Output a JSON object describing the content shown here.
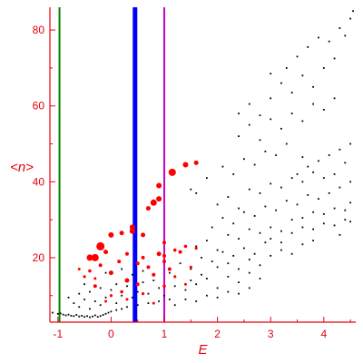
{
  "chart_data": {
    "type": "scatter",
    "title": "",
    "xlabel": "E",
    "ylabel": "<n>",
    "xlim": [
      -1.15,
      4.6
    ],
    "ylim": [
      3,
      86
    ],
    "xticks": [
      -1,
      0,
      1,
      2,
      3,
      4
    ],
    "yticks": [
      20,
      40,
      60,
      80
    ],
    "axis_color": "#e8000b",
    "vertical_lines": [
      {
        "x": -0.97,
        "color": "#008000",
        "width": "thin"
      },
      {
        "x": 0.45,
        "color": "#0000ff",
        "width": "thick"
      },
      {
        "x": 1.0,
        "color": "#cc00cc",
        "width": "thin"
      }
    ],
    "series": [
      {
        "marker": "small-dot",
        "color": "#000000",
        "points": [
          [
            -1.1,
            5.5
          ],
          [
            -1.0,
            5.2
          ],
          [
            -0.95,
            5.3
          ],
          [
            -0.9,
            5.0
          ],
          [
            -0.85,
            4.8
          ],
          [
            -0.8,
            5.0
          ],
          [
            -0.75,
            4.7
          ],
          [
            -0.7,
            4.6
          ],
          [
            -0.65,
            4.9
          ],
          [
            -0.6,
            4.5
          ],
          [
            -0.55,
            4.7
          ],
          [
            -0.5,
            4.4
          ],
          [
            -0.45,
            4.6
          ],
          [
            -0.4,
            4.3
          ],
          [
            -0.35,
            4.5
          ],
          [
            -0.3,
            4.8
          ],
          [
            -0.25,
            4.4
          ],
          [
            -0.2,
            4.6
          ],
          [
            -0.15,
            4.9
          ],
          [
            -0.1,
            5.2
          ],
          [
            -0.05,
            5.5
          ],
          [
            0.0,
            5.8
          ],
          [
            0.1,
            6.2
          ],
          [
            0.2,
            6.5
          ],
          [
            0.3,
            7.0
          ],
          [
            0.5,
            7.5
          ],
          [
            0.7,
            8.0
          ],
          [
            0.9,
            8.5
          ],
          [
            1.1,
            9.0
          ],
          [
            -0.8,
            9.5
          ],
          [
            -0.7,
            8.0
          ],
          [
            -0.6,
            10.5
          ],
          [
            -0.5,
            9.0
          ],
          [
            -0.4,
            11.0
          ],
          [
            -0.3,
            8.5
          ],
          [
            -0.2,
            12.0
          ],
          [
            -0.1,
            9.5
          ],
          [
            0.0,
            11.5
          ],
          [
            0.1,
            13.0
          ],
          [
            -0.6,
            7.0
          ],
          [
            -0.4,
            6.5
          ],
          [
            -0.2,
            7.5
          ],
          [
            0.1,
            8.0
          ],
          [
            0.2,
            10.0
          ],
          [
            0.3,
            12.5
          ],
          [
            0.4,
            9.5
          ],
          [
            0.5,
            11.0
          ],
          [
            0.6,
            13.5
          ],
          [
            0.7,
            10.5
          ],
          [
            -0.5,
            13.0
          ],
          [
            -0.3,
            14.5
          ],
          [
            -0.1,
            16.0
          ],
          [
            0.2,
            17.0
          ],
          [
            0.4,
            15.5
          ],
          [
            0.6,
            16.5
          ],
          [
            0.8,
            14.0
          ],
          [
            0.9,
            12.0
          ],
          [
            1.0,
            10.0
          ],
          [
            1.2,
            12.5
          ],
          [
            1.4,
            11.5
          ],
          [
            1.6,
            13.0
          ],
          [
            1.8,
            14.5
          ],
          [
            2.0,
            12.0
          ],
          [
            2.2,
            15.0
          ],
          [
            2.4,
            13.5
          ],
          [
            2.6,
            16.0
          ],
          [
            2.8,
            14.5
          ],
          [
            1.1,
            16.0
          ],
          [
            1.3,
            18.5
          ],
          [
            1.5,
            17.0
          ],
          [
            1.7,
            20.0
          ],
          [
            1.9,
            19.0
          ],
          [
            2.1,
            21.5
          ],
          [
            2.3,
            20.5
          ],
          [
            2.5,
            22.5
          ],
          [
            2.7,
            21.0
          ],
          [
            2.9,
            24.0
          ],
          [
            1.6,
            23.0
          ],
          [
            1.8,
            24.5
          ],
          [
            2.0,
            22.0
          ],
          [
            2.2,
            26.0
          ],
          [
            2.4,
            25.0
          ],
          [
            2.6,
            27.5
          ],
          [
            2.8,
            26.5
          ],
          [
            3.0,
            28.0
          ],
          [
            3.2,
            27.0
          ],
          [
            3.4,
            30.0
          ],
          [
            1.9,
            28.0
          ],
          [
            2.1,
            30.5
          ],
          [
            2.3,
            29.0
          ],
          [
            2.5,
            32.0
          ],
          [
            2.7,
            31.0
          ],
          [
            2.9,
            33.5
          ],
          [
            3.1,
            32.5
          ],
          [
            3.3,
            35.0
          ],
          [
            3.5,
            34.0
          ],
          [
            3.7,
            36.5
          ],
          [
            2.0,
            34.0
          ],
          [
            2.2,
            36.0
          ],
          [
            2.4,
            33.0
          ],
          [
            2.6,
            38.0
          ],
          [
            2.8,
            37.0
          ],
          [
            3.0,
            39.5
          ],
          [
            3.2,
            38.5
          ],
          [
            3.4,
            41.0
          ],
          [
            3.6,
            40.0
          ],
          [
            3.8,
            42.5
          ],
          [
            1.6,
            37.0
          ],
          [
            1.5,
            38.0
          ],
          [
            1.8,
            41.0
          ],
          [
            2.1,
            44.0
          ],
          [
            2.3,
            42.0
          ],
          [
            2.5,
            46.0
          ],
          [
            2.7,
            44.5
          ],
          [
            2.9,
            48.0
          ],
          [
            3.1,
            47.0
          ],
          [
            3.3,
            50.0
          ],
          [
            2.4,
            52.0
          ],
          [
            2.6,
            55.0
          ],
          [
            2.8,
            51.0
          ],
          [
            3.0,
            56.5
          ],
          [
            3.2,
            54.0
          ],
          [
            3.4,
            58.0
          ],
          [
            3.6,
            56.0
          ],
          [
            3.8,
            60.5
          ],
          [
            4.0,
            59.0
          ],
          [
            4.2,
            62.0
          ],
          [
            2.4,
            58.0
          ],
          [
            2.6,
            60.5
          ],
          [
            2.8,
            57.5
          ],
          [
            3.0,
            62.0
          ],
          [
            3.2,
            66.0
          ],
          [
            3.4,
            63.5
          ],
          [
            3.6,
            68.0
          ],
          [
            3.8,
            65.0
          ],
          [
            4.0,
            70.0
          ],
          [
            4.2,
            72.5
          ],
          [
            3.0,
            68.5
          ],
          [
            3.3,
            70.0
          ],
          [
            3.5,
            73.0
          ],
          [
            3.7,
            75.5
          ],
          [
            3.9,
            78.0
          ],
          [
            4.1,
            77.0
          ],
          [
            4.3,
            80.5
          ],
          [
            4.5,
            83.0
          ],
          [
            4.55,
            85.0
          ],
          [
            4.4,
            78.5
          ],
          [
            3.6,
            30.5
          ],
          [
            3.8,
            32.0
          ],
          [
            4.0,
            31.5
          ],
          [
            4.2,
            33.0
          ],
          [
            4.4,
            32.5
          ],
          [
            4.5,
            34.5
          ],
          [
            3.9,
            35.5
          ],
          [
            4.1,
            37.0
          ],
          [
            4.3,
            38.5
          ],
          [
            4.5,
            40.0
          ],
          [
            3.5,
            42.0
          ],
          [
            3.7,
            44.0
          ],
          [
            3.9,
            45.5
          ],
          [
            4.1,
            47.0
          ],
          [
            4.3,
            48.5
          ],
          [
            4.5,
            50.0
          ],
          [
            4.4,
            45.0
          ],
          [
            4.2,
            42.0
          ],
          [
            4.0,
            41.0
          ],
          [
            3.6,
            46.5
          ],
          [
            2.0,
            17.5
          ],
          [
            2.2,
            18.5
          ],
          [
            2.4,
            17.0
          ],
          [
            2.6,
            19.5
          ],
          [
            2.8,
            18.0
          ],
          [
            3.0,
            20.5
          ],
          [
            3.2,
            22.0
          ],
          [
            3.4,
            21.0
          ],
          [
            3.6,
            23.5
          ],
          [
            3.8,
            24.5
          ],
          [
            3.0,
            25.0
          ],
          [
            3.2,
            24.0
          ],
          [
            3.4,
            26.5
          ],
          [
            3.6,
            28.0
          ],
          [
            3.8,
            27.5
          ],
          [
            4.0,
            29.0
          ],
          [
            4.2,
            28.5
          ],
          [
            4.4,
            30.0
          ],
          [
            4.5,
            29.5
          ],
          [
            4.3,
            26.0
          ],
          [
            1.2,
            7.5
          ],
          [
            1.4,
            9.0
          ],
          [
            1.6,
            8.5
          ],
          [
            1.8,
            10.0
          ],
          [
            2.0,
            9.5
          ],
          [
            2.2,
            11.0
          ],
          [
            2.4,
            10.5
          ],
          [
            2.6,
            12.0
          ],
          [
            1.5,
            14.0
          ],
          [
            1.7,
            15.5
          ]
        ]
      },
      {
        "marker": "red-circle",
        "color": "#ff0000",
        "points": [
          [
            -0.2,
            23.0
          ],
          [
            -0.3,
            20.0
          ],
          [
            -0.4,
            20.0
          ],
          [
            0.0,
            26.0
          ],
          [
            0.4,
            27.0
          ],
          [
            0.2,
            26.5
          ],
          [
            0.6,
            26.0
          ],
          [
            0.8,
            34.5
          ],
          [
            0.9,
            35.5
          ],
          [
            1.15,
            42.5
          ],
          [
            1.4,
            44.5
          ],
          [
            1.6,
            45.0
          ],
          [
            0.9,
            39.0
          ],
          [
            0.7,
            33.0
          ],
          [
            0.4,
            28.0
          ],
          [
            0.6,
            20.0
          ],
          [
            0.9,
            21.0
          ],
          [
            1.0,
            20.5
          ],
          [
            0.5,
            18.5
          ],
          [
            0.7,
            17.5
          ],
          [
            0.3,
            14.0
          ],
          [
            0.5,
            13.0
          ],
          [
            0.8,
            15.5
          ],
          [
            1.0,
            12.5
          ],
          [
            1.1,
            17.0
          ],
          [
            0.0,
            16.0
          ],
          [
            -0.2,
            18.0
          ],
          [
            -0.1,
            21.5
          ],
          [
            0.15,
            19.0
          ],
          [
            0.3,
            21.0
          ],
          [
            0.0,
            10.0
          ],
          [
            0.2,
            11.0
          ],
          [
            -0.1,
            8.5
          ],
          [
            -0.3,
            12.5
          ],
          [
            0.3,
            9.0
          ],
          [
            0.6,
            10.5
          ],
          [
            0.8,
            8.0
          ],
          [
            1.0,
            19.0
          ],
          [
            1.2,
            15.0
          ],
          [
            1.3,
            21.5
          ],
          [
            1.0,
            24.0
          ],
          [
            1.2,
            22.0
          ],
          [
            1.4,
            23.0
          ],
          [
            1.6,
            22.5
          ],
          [
            1.5,
            17.5
          ],
          [
            1.4,
            13.0
          ],
          [
            -0.4,
            16.5
          ],
          [
            -0.5,
            15.0
          ],
          [
            -0.6,
            17.0
          ],
          [
            -0.3,
            14.5
          ]
        ],
        "sizes": [
          4.5,
          4.0,
          3.5,
          3.0,
          3.0,
          2.5,
          2.5,
          3.5,
          3.0,
          4.0,
          3.0,
          2.5,
          3.0,
          2.5,
          3.0,
          2.0,
          2.5,
          2.0,
          2.0,
          2.0,
          2.5,
          2.0,
          2.0,
          1.8,
          2.0,
          2.5,
          2.0,
          2.5,
          2.0,
          2.0,
          1.6,
          1.8,
          1.5,
          2.0,
          1.5,
          1.6,
          1.5,
          2.0,
          1.6,
          2.0,
          2.0,
          1.8,
          1.8,
          1.6,
          1.6,
          1.5,
          1.8,
          1.6,
          1.5,
          1.5
        ]
      }
    ]
  }
}
